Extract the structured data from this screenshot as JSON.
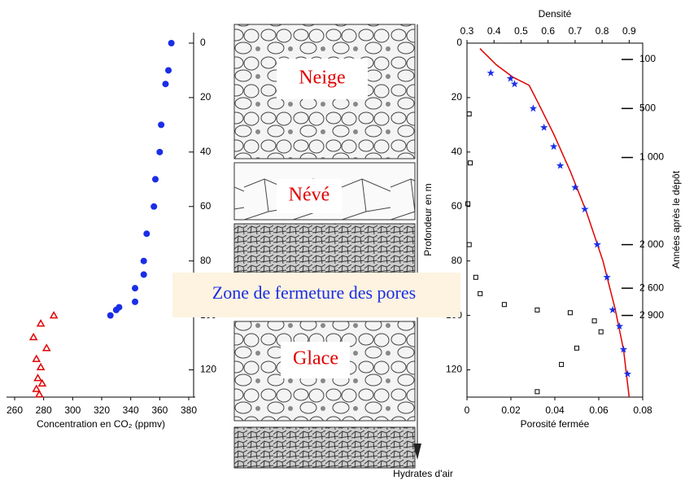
{
  "chart_data": [
    {
      "type": "scatter",
      "xlabel": "Concentration en CO₂ (ppmv)",
      "xlim": [
        260,
        380
      ],
      "xticks": [
        260,
        280,
        300,
        320,
        340,
        360,
        380
      ],
      "ylim": [
        0,
        130
      ],
      "yticks": [
        0,
        20,
        40,
        60,
        80,
        100,
        120
      ],
      "series": [
        {
          "color": "#1a2ee6",
          "marker": "circle",
          "x": [
            368,
            366,
            364,
            361,
            360,
            357,
            356,
            351,
            349,
            349,
            343,
            343,
            332,
            330,
            326
          ],
          "y": [
            0,
            10,
            15,
            30,
            40,
            50,
            60,
            70,
            80,
            85,
            90,
            95,
            97,
            98,
            100
          ]
        },
        {
          "color": "#e00000",
          "marker": "triangle",
          "x": [
            287,
            278,
            273,
            282,
            275,
            278,
            276,
            279,
            275,
            277
          ],
          "y": [
            100,
            103,
            108,
            112,
            116,
            119,
            123,
            125,
            127,
            129
          ]
        }
      ]
    },
    {
      "type": "scatter",
      "xlabel": "Porosité fermée",
      "x2label": "Densité",
      "ylabel": "Profondeur en m",
      "y2label": "Années après le dépôt",
      "xlim": [
        0,
        0.08
      ],
      "xticks": [
        0,
        0.02,
        0.04,
        0.06,
        0.08
      ],
      "x2lim": [
        0.3,
        0.95
      ],
      "x2ticks": [
        0.3,
        0.4,
        0.5,
        0.6,
        0.7,
        0.8,
        0.9
      ],
      "ylim": [
        0,
        130
      ],
      "yticks": [
        0,
        20,
        40,
        60,
        80,
        100,
        120
      ],
      "year_labels": [
        "100",
        "500",
        "1 000",
        "2 000",
        "2 600",
        "2 900"
      ],
      "year_depths": [
        6,
        24,
        42,
        74,
        90,
        100
      ],
      "series": [
        {
          "type": "line",
          "color": "#e00000",
          "axis": "x2",
          "x": [
            0.348,
            0.409,
            0.47,
            0.53,
            0.561,
            0.621,
            0.682,
            0.742,
            0.803,
            0.848,
            0.879,
            0.9
          ],
          "y": [
            2,
            8,
            12.5,
            15.5,
            21.5,
            33.4,
            47,
            62,
            80,
            97.6,
            112.5,
            130
          ]
        },
        {
          "color": "#1a2ee6",
          "marker": "star",
          "axis": "x2",
          "x": [
            0.388,
            0.461,
            0.476,
            0.545,
            0.585,
            0.621,
            0.645,
            0.7,
            0.736,
            0.782,
            0.818,
            0.839,
            0.864,
            0.879,
            0.894
          ],
          "y": [
            11,
            13,
            15,
            24,
            31,
            38,
            45,
            53,
            61,
            74,
            86,
            98,
            104,
            112.5,
            121.5
          ]
        },
        {
          "color": "#000000",
          "marker": "square",
          "x": [
            0.001,
            0.0015,
            0.0004,
            0.001,
            0.004,
            0.006,
            0.017,
            0.032,
            0.047,
            0.058,
            0.061,
            0.05,
            0.043,
            0.032
          ],
          "y": [
            26,
            44,
            59,
            74,
            86,
            92,
            96,
            98,
            99,
            102,
            106,
            112,
            118,
            128
          ]
        }
      ]
    }
  ],
  "layers": {
    "snow": "Neige",
    "firn": "Névé",
    "ice": "Glace",
    "close_off": "Zone de fermeture des pores",
    "hydrates": "Hydrates d'air"
  }
}
